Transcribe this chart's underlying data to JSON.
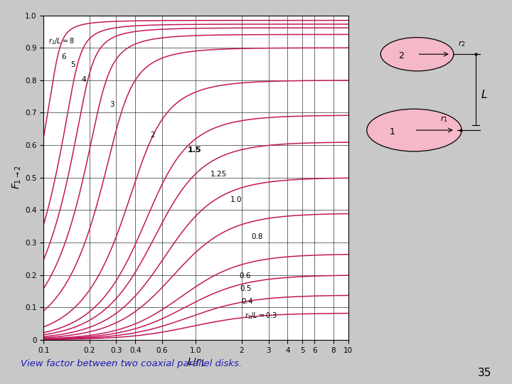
{
  "xlabel": "$L/r_1$",
  "ylabel": "$F_{1 \\rightarrow 2}$",
  "r2_L_values": [
    0.3,
    0.4,
    0.5,
    0.6,
    0.8,
    1.0,
    1.25,
    1.5,
    2.0,
    3.0,
    4.0,
    5.0,
    6.0,
    8.0
  ],
  "curve_color": "#C2185B",
  "background_color": "#C8C8C8",
  "plot_bg": "#FFFFFF",
  "caption": "View factor between two coaxial parallel disks.",
  "caption_color": "#1C1CB4",
  "page_number": "35",
  "xticks": [
    0.1,
    0.2,
    0.3,
    0.4,
    0.6,
    1.0,
    2,
    3,
    4,
    5,
    6,
    8,
    10
  ],
  "xtick_labels": [
    "0.1",
    "0.2",
    "0.3",
    "0.4",
    "0.6",
    "1.0",
    "2",
    "3",
    "4",
    "5",
    "6",
    "8",
    "10"
  ],
  "yticks": [
    0,
    0.1,
    0.2,
    0.3,
    0.4,
    0.5,
    0.6,
    0.7,
    0.8,
    0.9,
    1.0
  ],
  "ytick_labels": [
    "0",
    "0.1",
    "0.2",
    "0.3",
    "0.4",
    "0.5",
    "0.6",
    "0.7",
    "0.8",
    "0.9",
    "1.0"
  ]
}
